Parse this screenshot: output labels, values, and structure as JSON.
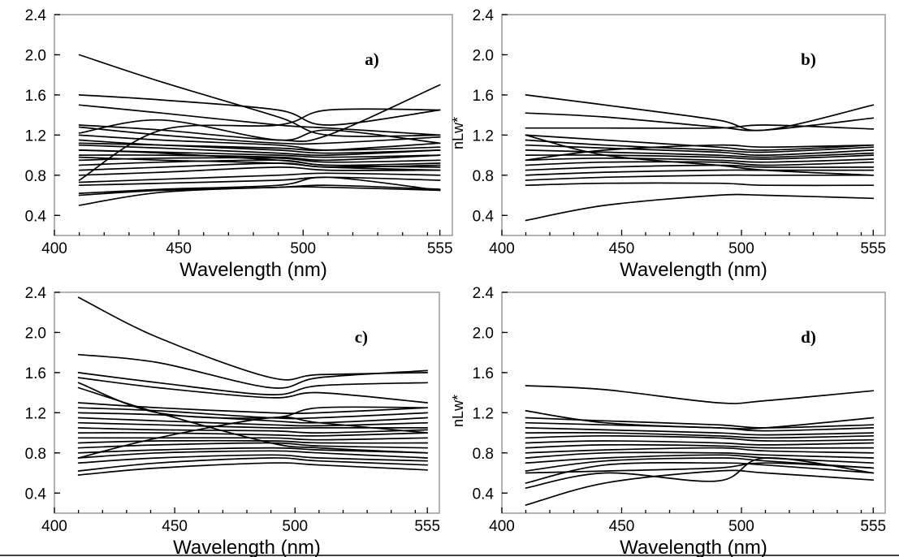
{
  "chart_data": [
    {
      "type": "line",
      "panel": "a)",
      "xlabel": "Wavelength (nm)",
      "ylabel": "",
      "xlim": [
        400,
        560
      ],
      "ylim": [
        0.2,
        2.4
      ],
      "xticks": [
        400,
        450,
        500,
        555
      ],
      "yticks": [
        "0.4",
        "0.8",
        "1.2",
        "1.6",
        "2.0",
        "2.4"
      ],
      "x": [
        410,
        443,
        490,
        510,
        555
      ],
      "series": [
        {
          "values": [
            2.0,
            1.73,
            1.38,
            1.2,
            1.2
          ]
        },
        {
          "values": [
            1.6,
            1.55,
            1.45,
            1.3,
            1.45
          ]
        },
        {
          "values": [
            1.5,
            1.42,
            1.3,
            1.27,
            1.2
          ]
        },
        {
          "values": [
            1.3,
            1.25,
            1.15,
            1.2,
            1.7
          ]
        },
        {
          "values": [
            0.75,
            1.25,
            1.3,
            1.45,
            1.45
          ]
        },
        {
          "values": [
            1.22,
            1.35,
            1.15,
            1.25,
            1.12
          ]
        },
        {
          "values": [
            1.28,
            1.2,
            1.12,
            1.12,
            1.18
          ]
        },
        {
          "values": [
            1.2,
            1.15,
            1.1,
            1.05,
            1.08
          ]
        },
        {
          "values": [
            1.15,
            1.1,
            1.05,
            1.02,
            1.05
          ]
        },
        {
          "values": [
            1.1,
            1.07,
            1.02,
            1.0,
            1.05
          ]
        },
        {
          "values": [
            1.05,
            1.03,
            1.0,
            0.98,
            1.0
          ]
        },
        {
          "values": [
            1.0,
            1.0,
            0.98,
            0.95,
            1.0
          ]
        },
        {
          "values": [
            0.95,
            0.97,
            0.97,
            0.93,
            0.95
          ]
        },
        {
          "values": [
            0.9,
            0.93,
            0.95,
            0.9,
            0.92
          ]
        },
        {
          "values": [
            0.85,
            0.88,
            0.92,
            0.88,
            0.9
          ]
        },
        {
          "values": [
            0.8,
            0.83,
            0.88,
            0.85,
            0.85
          ]
        },
        {
          "values": [
            0.73,
            0.76,
            0.8,
            0.82,
            0.8
          ]
        },
        {
          "values": [
            0.7,
            0.72,
            0.75,
            0.78,
            0.75
          ]
        },
        {
          "values": [
            0.62,
            0.66,
            0.7,
            0.78,
            0.65
          ]
        },
        {
          "values": [
            0.6,
            0.65,
            0.68,
            0.7,
            0.66
          ]
        },
        {
          "values": [
            0.5,
            0.63,
            0.68,
            0.68,
            0.65
          ]
        },
        {
          "values": [
            1.12,
            1.1,
            1.07,
            1.05,
            1.12
          ]
        },
        {
          "values": [
            0.98,
            0.95,
            0.92,
            0.88,
            0.85
          ]
        },
        {
          "values": [
            1.05,
            1.02,
            0.95,
            0.9,
            0.88
          ]
        }
      ]
    },
    {
      "type": "line",
      "panel": "b)",
      "xlabel": "Wavelength (nm)",
      "ylabel": "nLw*",
      "xlim": [
        400,
        560
      ],
      "ylim": [
        0.2,
        2.4
      ],
      "xticks": [
        400,
        450,
        500,
        555
      ],
      "yticks": [
        "0.4",
        "0.8",
        "1.2",
        "1.6",
        "2.0",
        "2.4"
      ],
      "x": [
        410,
        443,
        490,
        510,
        555
      ],
      "series": [
        {
          "values": [
            1.6,
            1.5,
            1.35,
            1.25,
            1.5
          ]
        },
        {
          "values": [
            1.42,
            1.38,
            1.28,
            1.25,
            1.37
          ]
        },
        {
          "values": [
            1.27,
            1.27,
            1.27,
            1.3,
            1.26
          ]
        },
        {
          "values": [
            1.2,
            1.15,
            1.08,
            1.05,
            1.1
          ]
        },
        {
          "values": [
            1.15,
            1.1,
            1.05,
            1.03,
            1.08
          ]
        },
        {
          "values": [
            1.1,
            1.07,
            1.03,
            1.0,
            1.05
          ]
        },
        {
          "values": [
            1.05,
            1.03,
            1.0,
            0.98,
            1.02
          ]
        },
        {
          "values": [
            1.0,
            1.0,
            0.98,
            0.96,
            1.0
          ]
        },
        {
          "values": [
            0.95,
            0.97,
            0.95,
            0.93,
            0.96
          ]
        },
        {
          "values": [
            0.9,
            0.93,
            0.93,
            0.9,
            0.93
          ]
        },
        {
          "values": [
            0.85,
            0.88,
            0.9,
            0.88,
            0.88
          ]
        },
        {
          "values": [
            0.8,
            0.83,
            0.85,
            0.85,
            0.85
          ]
        },
        {
          "values": [
            0.75,
            0.78,
            0.8,
            0.8,
            0.8
          ]
        },
        {
          "values": [
            0.7,
            0.72,
            0.72,
            0.7,
            0.7
          ]
        },
        {
          "values": [
            0.35,
            0.5,
            0.6,
            0.6,
            0.57
          ]
        },
        {
          "values": [
            1.2,
            1.0,
            0.9,
            0.85,
            0.8
          ]
        },
        {
          "values": [
            0.95,
            1.05,
            1.1,
            1.08,
            1.1
          ]
        }
      ]
    },
    {
      "type": "line",
      "panel": "c)",
      "xlabel": "Wavelength (nm)",
      "ylabel": "",
      "xlim": [
        400,
        560
      ],
      "ylim": [
        0.2,
        2.4
      ],
      "xticks": [
        400,
        450,
        500,
        555
      ],
      "yticks": [
        "0.4",
        "0.8",
        "1.2",
        "1.6",
        "2.0",
        "2.4"
      ],
      "x": [
        410,
        443,
        490,
        510,
        555
      ],
      "series": [
        {
          "values": [
            2.35,
            1.95,
            1.55,
            1.58,
            1.6
          ]
        },
        {
          "values": [
            1.78,
            1.7,
            1.45,
            1.55,
            1.62
          ]
        },
        {
          "values": [
            1.6,
            1.5,
            1.38,
            1.47,
            1.5
          ]
        },
        {
          "values": [
            1.55,
            1.45,
            1.35,
            1.4,
            1.3
          ]
        },
        {
          "values": [
            1.5,
            1.2,
            1.15,
            1.25,
            1.25
          ]
        },
        {
          "values": [
            1.3,
            1.25,
            1.2,
            1.2,
            1.25
          ]
        },
        {
          "values": [
            1.25,
            1.22,
            1.15,
            1.15,
            1.2
          ]
        },
        {
          "values": [
            1.2,
            1.18,
            1.12,
            1.1,
            1.15
          ]
        },
        {
          "values": [
            1.15,
            1.12,
            1.08,
            1.07,
            1.1
          ]
        },
        {
          "values": [
            1.1,
            1.08,
            1.05,
            1.05,
            1.05
          ]
        },
        {
          "values": [
            1.05,
            1.03,
            1.02,
            1.0,
            1.03
          ]
        },
        {
          "values": [
            1.0,
            1.0,
            0.98,
            0.97,
            1.0
          ]
        },
        {
          "values": [
            0.95,
            0.95,
            0.95,
            0.93,
            0.95
          ]
        },
        {
          "values": [
            0.9,
            0.92,
            0.92,
            0.9,
            0.9
          ]
        },
        {
          "values": [
            0.85,
            0.88,
            0.9,
            0.87,
            0.85
          ]
        },
        {
          "values": [
            0.8,
            0.83,
            0.85,
            0.83,
            0.8
          ]
        },
        {
          "values": [
            0.75,
            0.8,
            0.82,
            0.8,
            0.75
          ]
        },
        {
          "values": [
            0.7,
            0.75,
            0.78,
            0.75,
            0.72
          ]
        },
        {
          "values": [
            0.62,
            0.7,
            0.75,
            0.72,
            0.68
          ]
        },
        {
          "values": [
            0.58,
            0.65,
            0.7,
            0.68,
            0.63
          ]
        },
        {
          "values": [
            1.45,
            1.2,
            0.9,
            0.85,
            0.8
          ]
        },
        {
          "values": [
            0.75,
            0.95,
            1.15,
            1.1,
            1.0
          ]
        }
      ]
    },
    {
      "type": "line",
      "panel": "d)",
      "xlabel": "Wavelength (nm)",
      "ylabel": "nLw*",
      "xlim": [
        400,
        560
      ],
      "ylim": [
        0.2,
        2.4
      ],
      "xticks": [
        400,
        450,
        500,
        555
      ],
      "yticks": [
        "0.4",
        "0.8",
        "1.2",
        "1.6",
        "2.0",
        "2.4"
      ],
      "x": [
        410,
        443,
        490,
        510,
        555
      ],
      "series": [
        {
          "values": [
            1.47,
            1.43,
            1.3,
            1.32,
            1.42
          ]
        },
        {
          "values": [
            1.22,
            1.1,
            1.05,
            1.05,
            1.15
          ]
        },
        {
          "values": [
            1.15,
            1.12,
            1.08,
            1.05,
            1.08
          ]
        },
        {
          "values": [
            1.1,
            1.08,
            1.05,
            1.02,
            1.05
          ]
        },
        {
          "values": [
            1.05,
            1.03,
            1.0,
            0.98,
            1.0
          ]
        },
        {
          "values": [
            1.0,
            1.0,
            0.97,
            0.95,
            0.97
          ]
        },
        {
          "values": [
            0.95,
            0.97,
            0.95,
            0.92,
            0.93
          ]
        },
        {
          "values": [
            0.9,
            0.92,
            0.9,
            0.88,
            0.9
          ]
        },
        {
          "values": [
            0.85,
            0.88,
            0.87,
            0.85,
            0.85
          ]
        },
        {
          "values": [
            0.8,
            0.83,
            0.85,
            0.82,
            0.8
          ]
        },
        {
          "values": [
            0.75,
            0.8,
            0.8,
            0.78,
            0.75
          ]
        },
        {
          "values": [
            0.7,
            0.75,
            0.78,
            0.75,
            0.7
          ]
        },
        {
          "values": [
            0.62,
            0.72,
            0.75,
            0.72,
            0.65
          ]
        },
        {
          "values": [
            0.5,
            0.68,
            0.7,
            0.68,
            0.6
          ]
        },
        {
          "values": [
            0.45,
            0.6,
            0.52,
            0.75,
            0.6
          ]
        },
        {
          "values": [
            0.28,
            0.5,
            0.62,
            0.6,
            0.53
          ]
        },
        {
          "values": [
            0.6,
            0.62,
            0.65,
            0.7,
            0.65
          ]
        }
      ]
    }
  ],
  "colors": {
    "line": "#000000",
    "frame": "#9a9a9a",
    "olive": "#6b6b2a",
    "background": "#ffffff"
  }
}
